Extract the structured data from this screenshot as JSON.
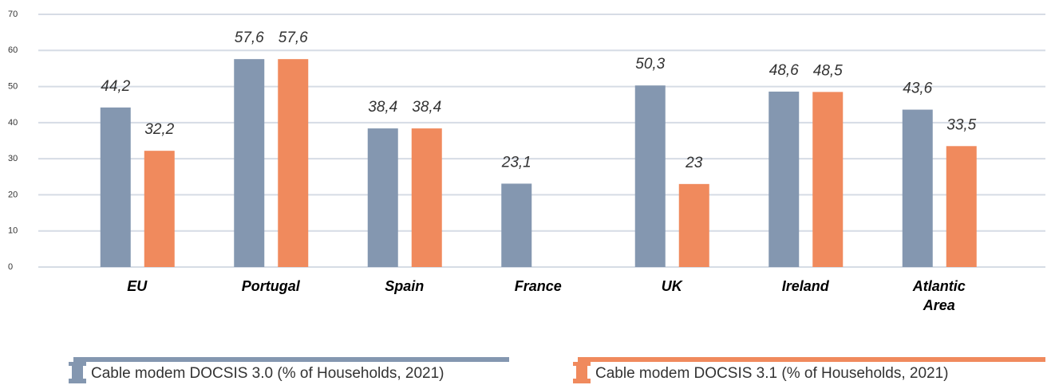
{
  "chart_data": {
    "type": "bar",
    "categories": [
      "EU",
      "Portugal",
      "Spain",
      "France",
      "UK",
      "Ireland",
      "Atlantic Area"
    ],
    "series": [
      {
        "name": "Cable modem DOCSIS 3.0 (% of Households, 2021)",
        "color": "#8497b0",
        "values": [
          44.2,
          57.6,
          38.4,
          23.1,
          50.3,
          48.6,
          43.6
        ],
        "value_labels": [
          "44,2",
          "57,6",
          "38,4",
          "23,1",
          "50,3",
          "48,6",
          "43,6"
        ]
      },
      {
        "name": "Cable modem DOCSIS 3.1 (% of Households, 2021)",
        "color": "#f08a5d",
        "values": [
          32.2,
          57.6,
          38.4,
          null,
          23,
          48.5,
          33.5
        ],
        "value_labels": [
          "32,2",
          "57,6",
          "38,4",
          null,
          "23",
          "48,5",
          "33,5"
        ]
      }
    ],
    "ylim": [
      0,
      70
    ],
    "yticks": [
      0,
      10,
      20,
      30,
      40,
      50,
      60,
      70
    ],
    "grid": true
  }
}
